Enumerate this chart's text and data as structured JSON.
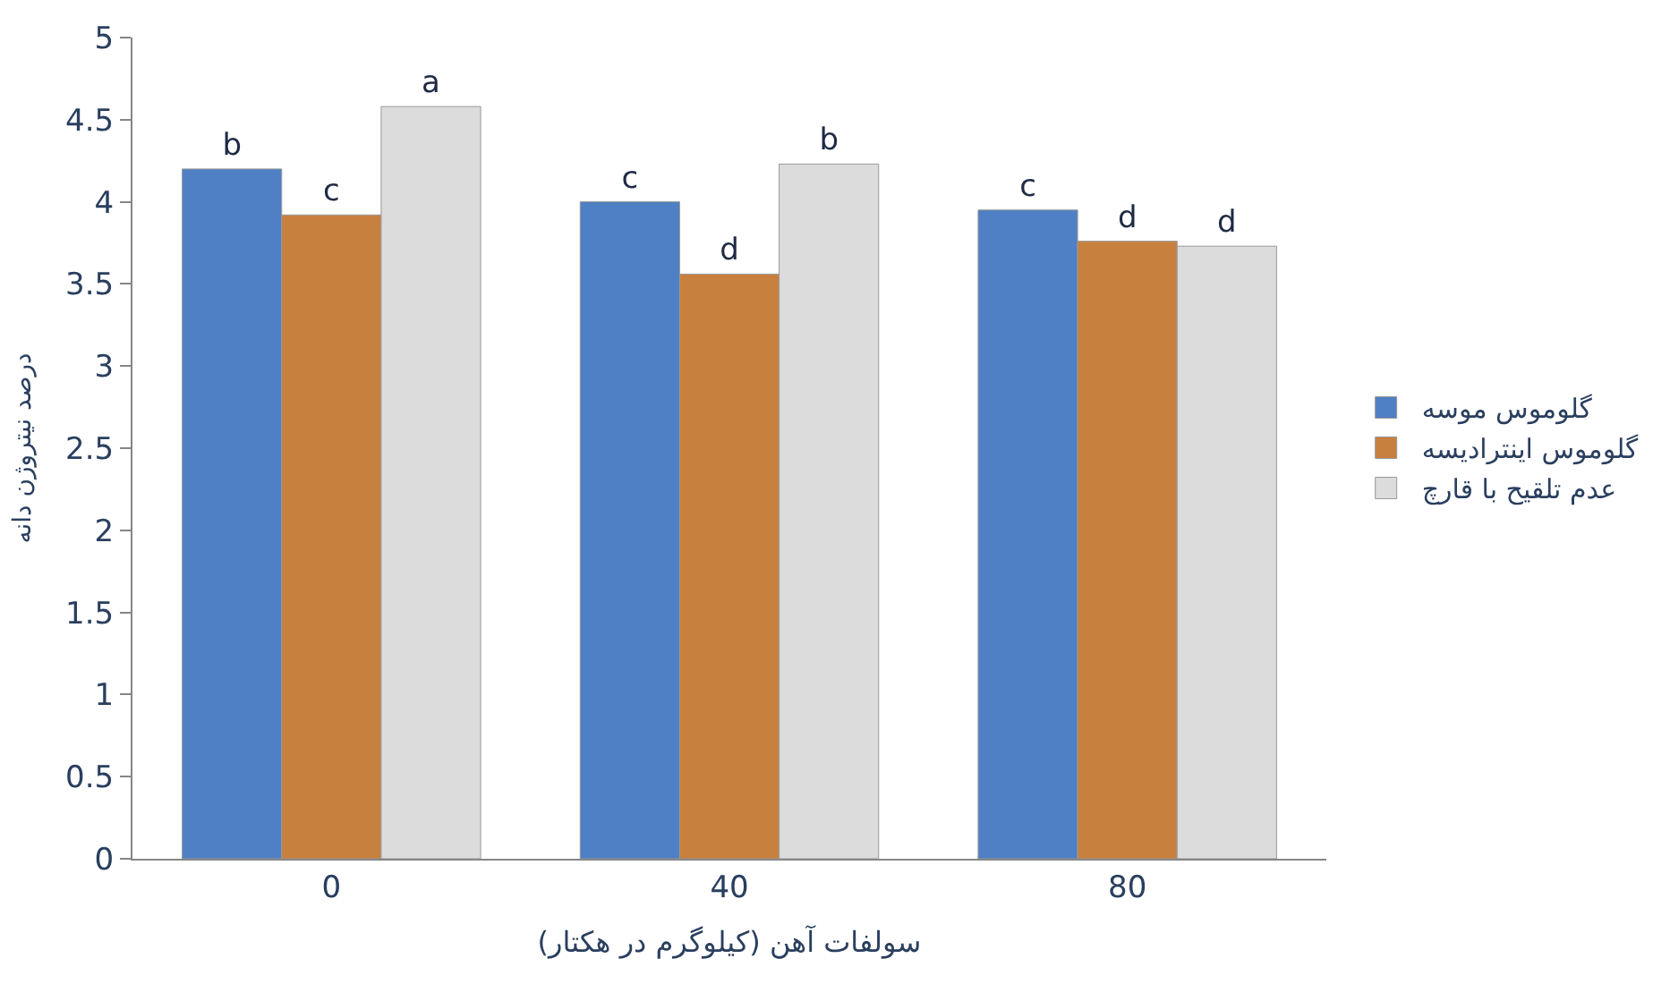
{
  "chart_data": {
    "type": "bar",
    "xlabel": "سولفات آهن (کیلوگرم در هکتار)",
    "ylabel": "درصد نیتروژن دانه",
    "categories": [
      "0",
      "40",
      "80"
    ],
    "series": [
      {
        "name": "گلوموس موسه",
        "color": "#4f7fc4",
        "values": [
          4.2,
          4.0,
          3.95
        ],
        "value_labels": [
          "b",
          "c",
          "c"
        ]
      },
      {
        "name": "گلوموس اینترادیسه",
        "color": "#c8803e",
        "values": [
          3.92,
          3.56,
          3.76
        ],
        "value_labels": [
          "c",
          "d",
          "d"
        ]
      },
      {
        "name": "عدم تلقیح با قارچ",
        "color": "#dcdcdc",
        "values": [
          4.58,
          4.23,
          3.73
        ],
        "value_labels": [
          "a",
          "b",
          "d"
        ]
      }
    ],
    "ylim": [
      0,
      5
    ],
    "yticks": [
      0,
      0.5,
      1,
      1.5,
      2,
      2.5,
      3,
      3.5,
      4,
      4.5,
      5
    ],
    "legend": "right"
  }
}
